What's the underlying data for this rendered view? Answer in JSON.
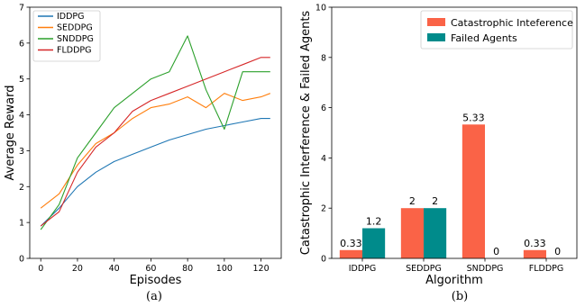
{
  "captions": [
    "(a)",
    "(b)"
  ],
  "chart_data": [
    {
      "type": "line",
      "xlabel": "Episodes",
      "ylabel": "Average Reward",
      "xlim": [
        -6,
        131
      ],
      "ylim": [
        0,
        7
      ],
      "xticks": [
        0,
        20,
        40,
        60,
        80,
        100,
        120
      ],
      "yticks": [
        0,
        1,
        2,
        3,
        4,
        5,
        6,
        7
      ],
      "legend": "top-left",
      "series": [
        {
          "name": "IDDPG",
          "color": "#1f77b4",
          "x": [
            0,
            10,
            20,
            30,
            40,
            50,
            60,
            70,
            80,
            90,
            100,
            110,
            120,
            125
          ],
          "y": [
            0.9,
            1.4,
            2.0,
            2.4,
            2.7,
            2.9,
            3.1,
            3.3,
            3.45,
            3.6,
            3.7,
            3.8,
            3.9,
            3.9
          ]
        },
        {
          "name": "SEDDPG",
          "color": "#ff7f0e",
          "x": [
            0,
            10,
            20,
            30,
            40,
            50,
            60,
            70,
            80,
            90,
            100,
            110,
            120,
            125
          ],
          "y": [
            1.4,
            1.8,
            2.6,
            3.2,
            3.5,
            3.9,
            4.2,
            4.3,
            4.5,
            4.2,
            4.6,
            4.4,
            4.5,
            4.6
          ]
        },
        {
          "name": "SNDDPG",
          "color": "#2ca02c",
          "x": [
            0,
            10,
            20,
            30,
            40,
            50,
            60,
            70,
            80,
            90,
            100,
            110,
            120,
            125
          ],
          "y": [
            0.8,
            1.5,
            2.8,
            3.5,
            4.2,
            4.6,
            5.0,
            5.2,
            6.2,
            4.7,
            3.6,
            5.2,
            5.2,
            5.2
          ]
        },
        {
          "name": "FLDDPG",
          "color": "#d62728",
          "x": [
            0,
            10,
            20,
            30,
            40,
            50,
            60,
            70,
            80,
            90,
            100,
            110,
            120,
            125
          ],
          "y": [
            0.9,
            1.3,
            2.4,
            3.1,
            3.5,
            4.1,
            4.4,
            4.6,
            4.8,
            5.0,
            5.2,
            5.4,
            5.6,
            5.6
          ]
        }
      ]
    },
    {
      "type": "bar",
      "xlabel": "Algorithm",
      "ylabel": "Catastrophic Interference & Failed Agents",
      "ylim": [
        0,
        10
      ],
      "yticks": [
        0,
        2,
        4,
        6,
        8,
        10
      ],
      "categories": [
        "IDDPG",
        "SEDDPG",
        "SNDDPG",
        "FLDDPG"
      ],
      "legend": "top-right",
      "series": [
        {
          "name": "Catastrophic Inteference",
          "color": "#fa6347",
          "values": [
            0.33,
            2,
            5.33,
            0.33
          ],
          "labels": [
            "0.33",
            "2",
            "5.33",
            "0.33"
          ]
        },
        {
          "name": "Failed Agents",
          "color": "#008b8b",
          "values": [
            1.2,
            2,
            0,
            0
          ],
          "labels": [
            "1.2",
            "2",
            "0",
            "0"
          ]
        }
      ]
    }
  ]
}
